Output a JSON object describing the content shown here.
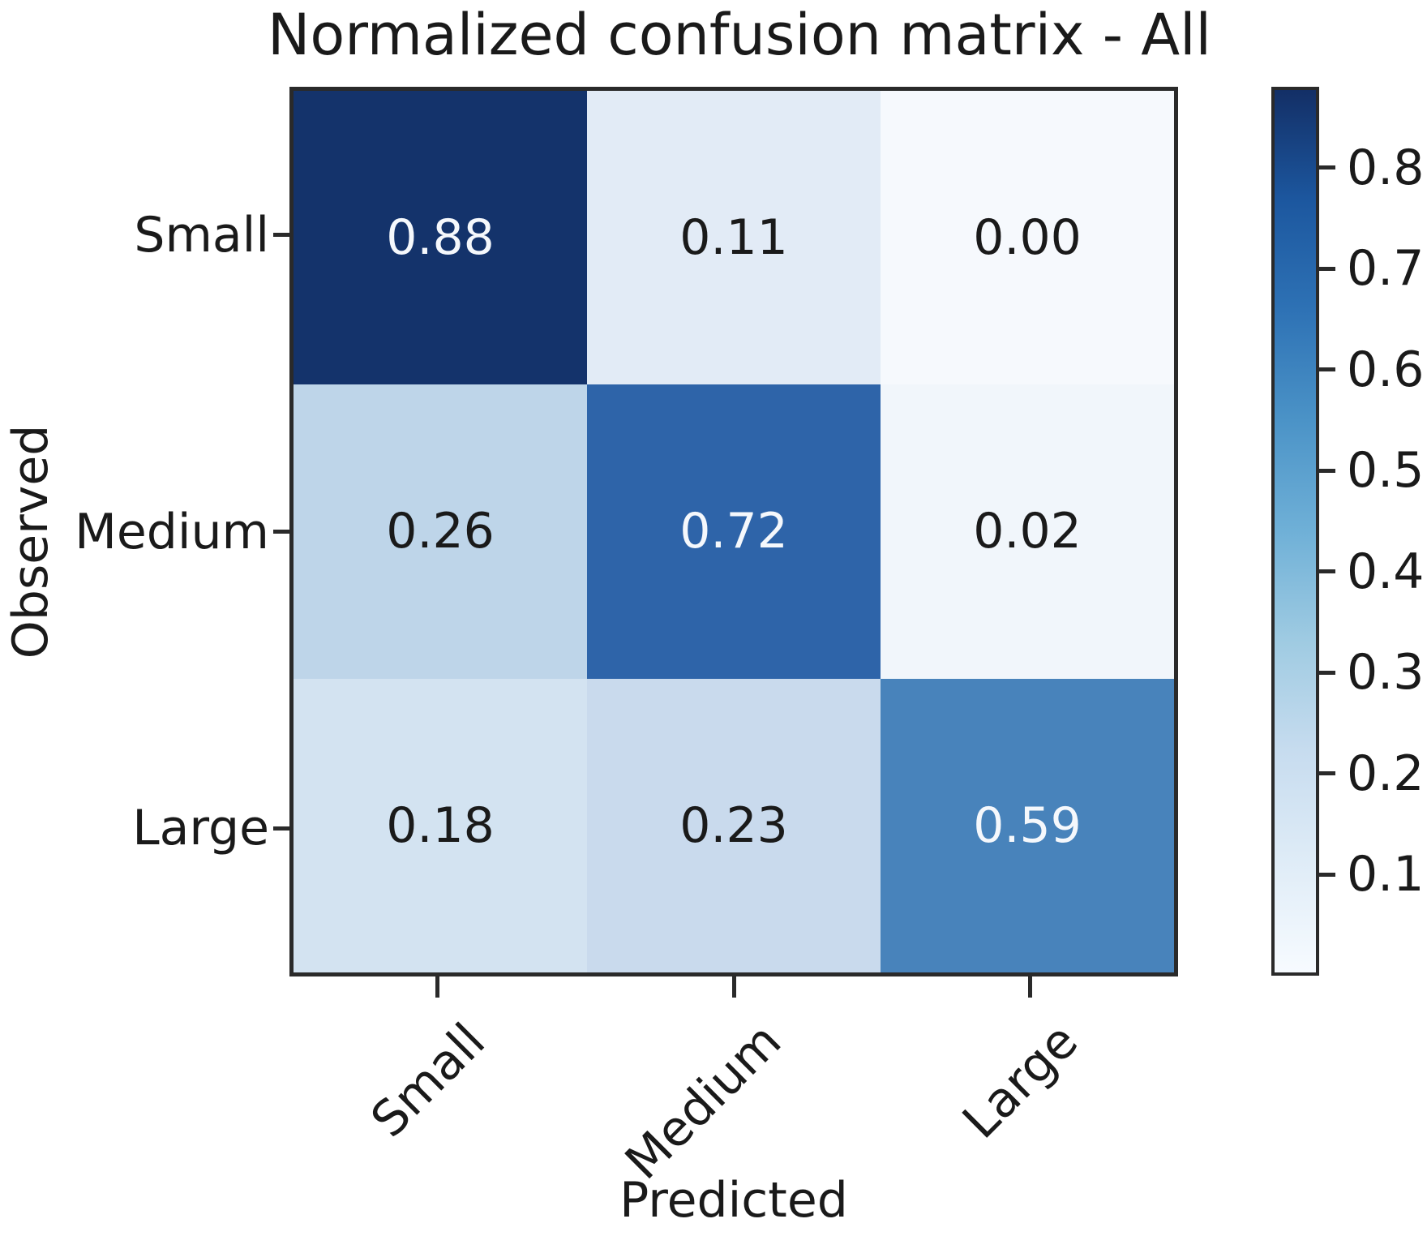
{
  "chart_data": {
    "type": "heatmap",
    "title": "Normalized confusion matrix - All",
    "xlabel": "Predicted",
    "ylabel": "Observed",
    "x_categories": [
      "Small",
      "Medium",
      "Large"
    ],
    "y_categories": [
      "Small",
      "Medium",
      "Large"
    ],
    "values": [
      [
        0.88,
        0.11,
        0.0
      ],
      [
        0.26,
        0.72,
        0.02
      ],
      [
        0.18,
        0.23,
        0.59
      ]
    ],
    "value_labels": [
      [
        "0.88",
        "0.11",
        "0.00"
      ],
      [
        "0.26",
        "0.72",
        "0.02"
      ],
      [
        "0.18",
        "0.23",
        "0.59"
      ]
    ],
    "cell_colors": [
      [
        "#14336b",
        "#e2ebf6",
        "#f6f9fd"
      ],
      [
        "#bed5e9",
        "#2e64a9",
        "#f1f6fb"
      ],
      [
        "#d3e3f1",
        "#c9daed",
        "#4883bb"
      ]
    ],
    "cell_text_colors": [
      [
        "#f5f8fc",
        "#1a1a1a",
        "#1a1a1a"
      ],
      [
        "#1a1a1a",
        "#f5f8fc",
        "#1a1a1a"
      ],
      [
        "#1a1a1a",
        "#1a1a1a",
        "#f5f8fc"
      ]
    ],
    "colormap": "Blues",
    "grid": false,
    "legend": false,
    "colorbar": {
      "vmin": 0.0,
      "vmax": 0.88,
      "tick_values": [
        0.8,
        0.7,
        0.6,
        0.5,
        0.4,
        0.3,
        0.2,
        0.1
      ],
      "tick_labels": [
        "0.8",
        "0.7",
        "0.6",
        "0.5",
        "0.4",
        "0.3",
        "0.2",
        "0.1"
      ],
      "gradient_stops": [
        {
          "pos": 0.0,
          "color": "#132f66"
        },
        {
          "pos": 0.125,
          "color": "#1c579f"
        },
        {
          "pos": 0.25,
          "color": "#2e72b5"
        },
        {
          "pos": 0.375,
          "color": "#4b93c7"
        },
        {
          "pos": 0.5,
          "color": "#6fb0d7"
        },
        {
          "pos": 0.625,
          "color": "#9fcbe2"
        },
        {
          "pos": 0.75,
          "color": "#c7dcef"
        },
        {
          "pos": 0.875,
          "color": "#dfecf7"
        },
        {
          "pos": 1.0,
          "color": "#f7fbff"
        }
      ]
    }
  }
}
